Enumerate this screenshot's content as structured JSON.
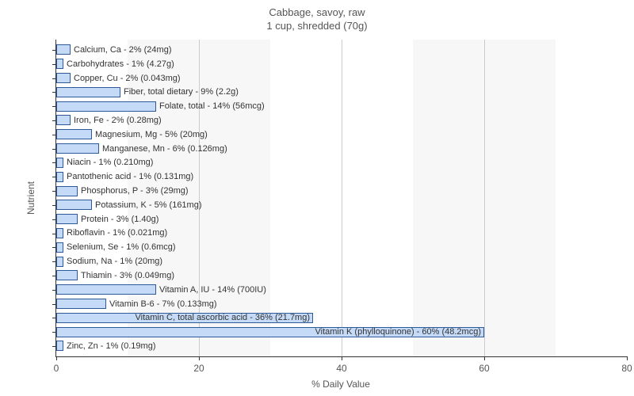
{
  "chart": {
    "type": "bar-horizontal",
    "title_line1": "Cabbage, savoy, raw",
    "title_line2": "1 cup, shredded (70g)",
    "title_fontsize": 13,
    "title_color": "#555555",
    "x_axis": {
      "label": "% Daily Value",
      "min": 0,
      "max": 80,
      "tick_step": 20,
      "label_fontsize": 12,
      "tick_fontsize": 12,
      "tick_color": "#555555"
    },
    "y_axis": {
      "label": "Nutrient",
      "label_fontsize": 12
    },
    "bar_fill": "#c4daf6",
    "bar_border": "#2e5a99",
    "bar_label_fontsize": 11,
    "background_bands": "#f7f7f7",
    "grid_line_color": "#cccccc",
    "plot_background": "#ffffff",
    "nutrients": [
      {
        "label": "Calcium, Ca - 2% (24mg)",
        "value": 2
      },
      {
        "label": "Carbohydrates - 1% (4.27g)",
        "value": 1
      },
      {
        "label": "Copper, Cu - 2% (0.043mg)",
        "value": 2
      },
      {
        "label": "Fiber, total dietary - 9% (2.2g)",
        "value": 9
      },
      {
        "label": "Folate, total - 14% (56mcg)",
        "value": 14
      },
      {
        "label": "Iron, Fe - 2% (0.28mg)",
        "value": 2
      },
      {
        "label": "Magnesium, Mg - 5% (20mg)",
        "value": 5
      },
      {
        "label": "Manganese, Mn - 6% (0.126mg)",
        "value": 6
      },
      {
        "label": "Niacin - 1% (0.210mg)",
        "value": 1
      },
      {
        "label": "Pantothenic acid - 1% (0.131mg)",
        "value": 1
      },
      {
        "label": "Phosphorus, P - 3% (29mg)",
        "value": 3
      },
      {
        "label": "Potassium, K - 5% (161mg)",
        "value": 5
      },
      {
        "label": "Protein - 3% (1.40g)",
        "value": 3
      },
      {
        "label": "Riboflavin - 1% (0.021mg)",
        "value": 1
      },
      {
        "label": "Selenium, Se - 1% (0.6mcg)",
        "value": 1
      },
      {
        "label": "Sodium, Na - 1% (20mg)",
        "value": 1
      },
      {
        "label": "Thiamin - 3% (0.049mg)",
        "value": 3
      },
      {
        "label": "Vitamin A, IU - 14% (700IU)",
        "value": 14
      },
      {
        "label": "Vitamin B-6 - 7% (0.133mg)",
        "value": 7
      },
      {
        "label": "Vitamin C, total ascorbic acid - 36% (21.7mg)",
        "value": 36
      },
      {
        "label": "Vitamin K (phylloquinone) - 60% (48.2mcg)",
        "value": 60
      },
      {
        "label": "Zinc, Zn - 1% (0.19mg)",
        "value": 1
      }
    ]
  }
}
